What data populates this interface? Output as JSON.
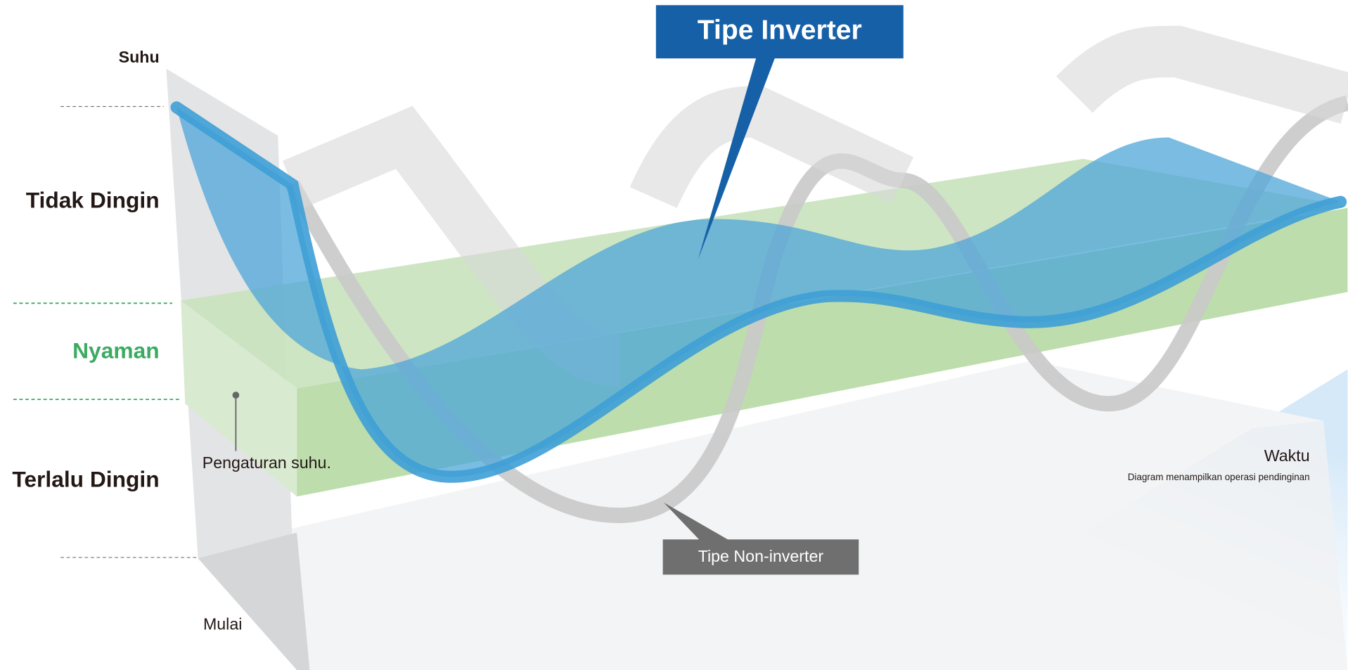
{
  "axis": {
    "y_label": "Suhu",
    "x_label": "Waktu",
    "start": "Mulai",
    "note": "Diagram menampilkan operasi pendinginan"
  },
  "zones": {
    "too_warm": "Tidak Dingin",
    "comfortable": "Nyaman",
    "too_cold": "Terlalu Dingin"
  },
  "setpoint": "Pengaturan suhu.",
  "callouts": {
    "inverter": "Tipe Inverter",
    "non_inverter": "Tipe Non-inverter"
  }
}
